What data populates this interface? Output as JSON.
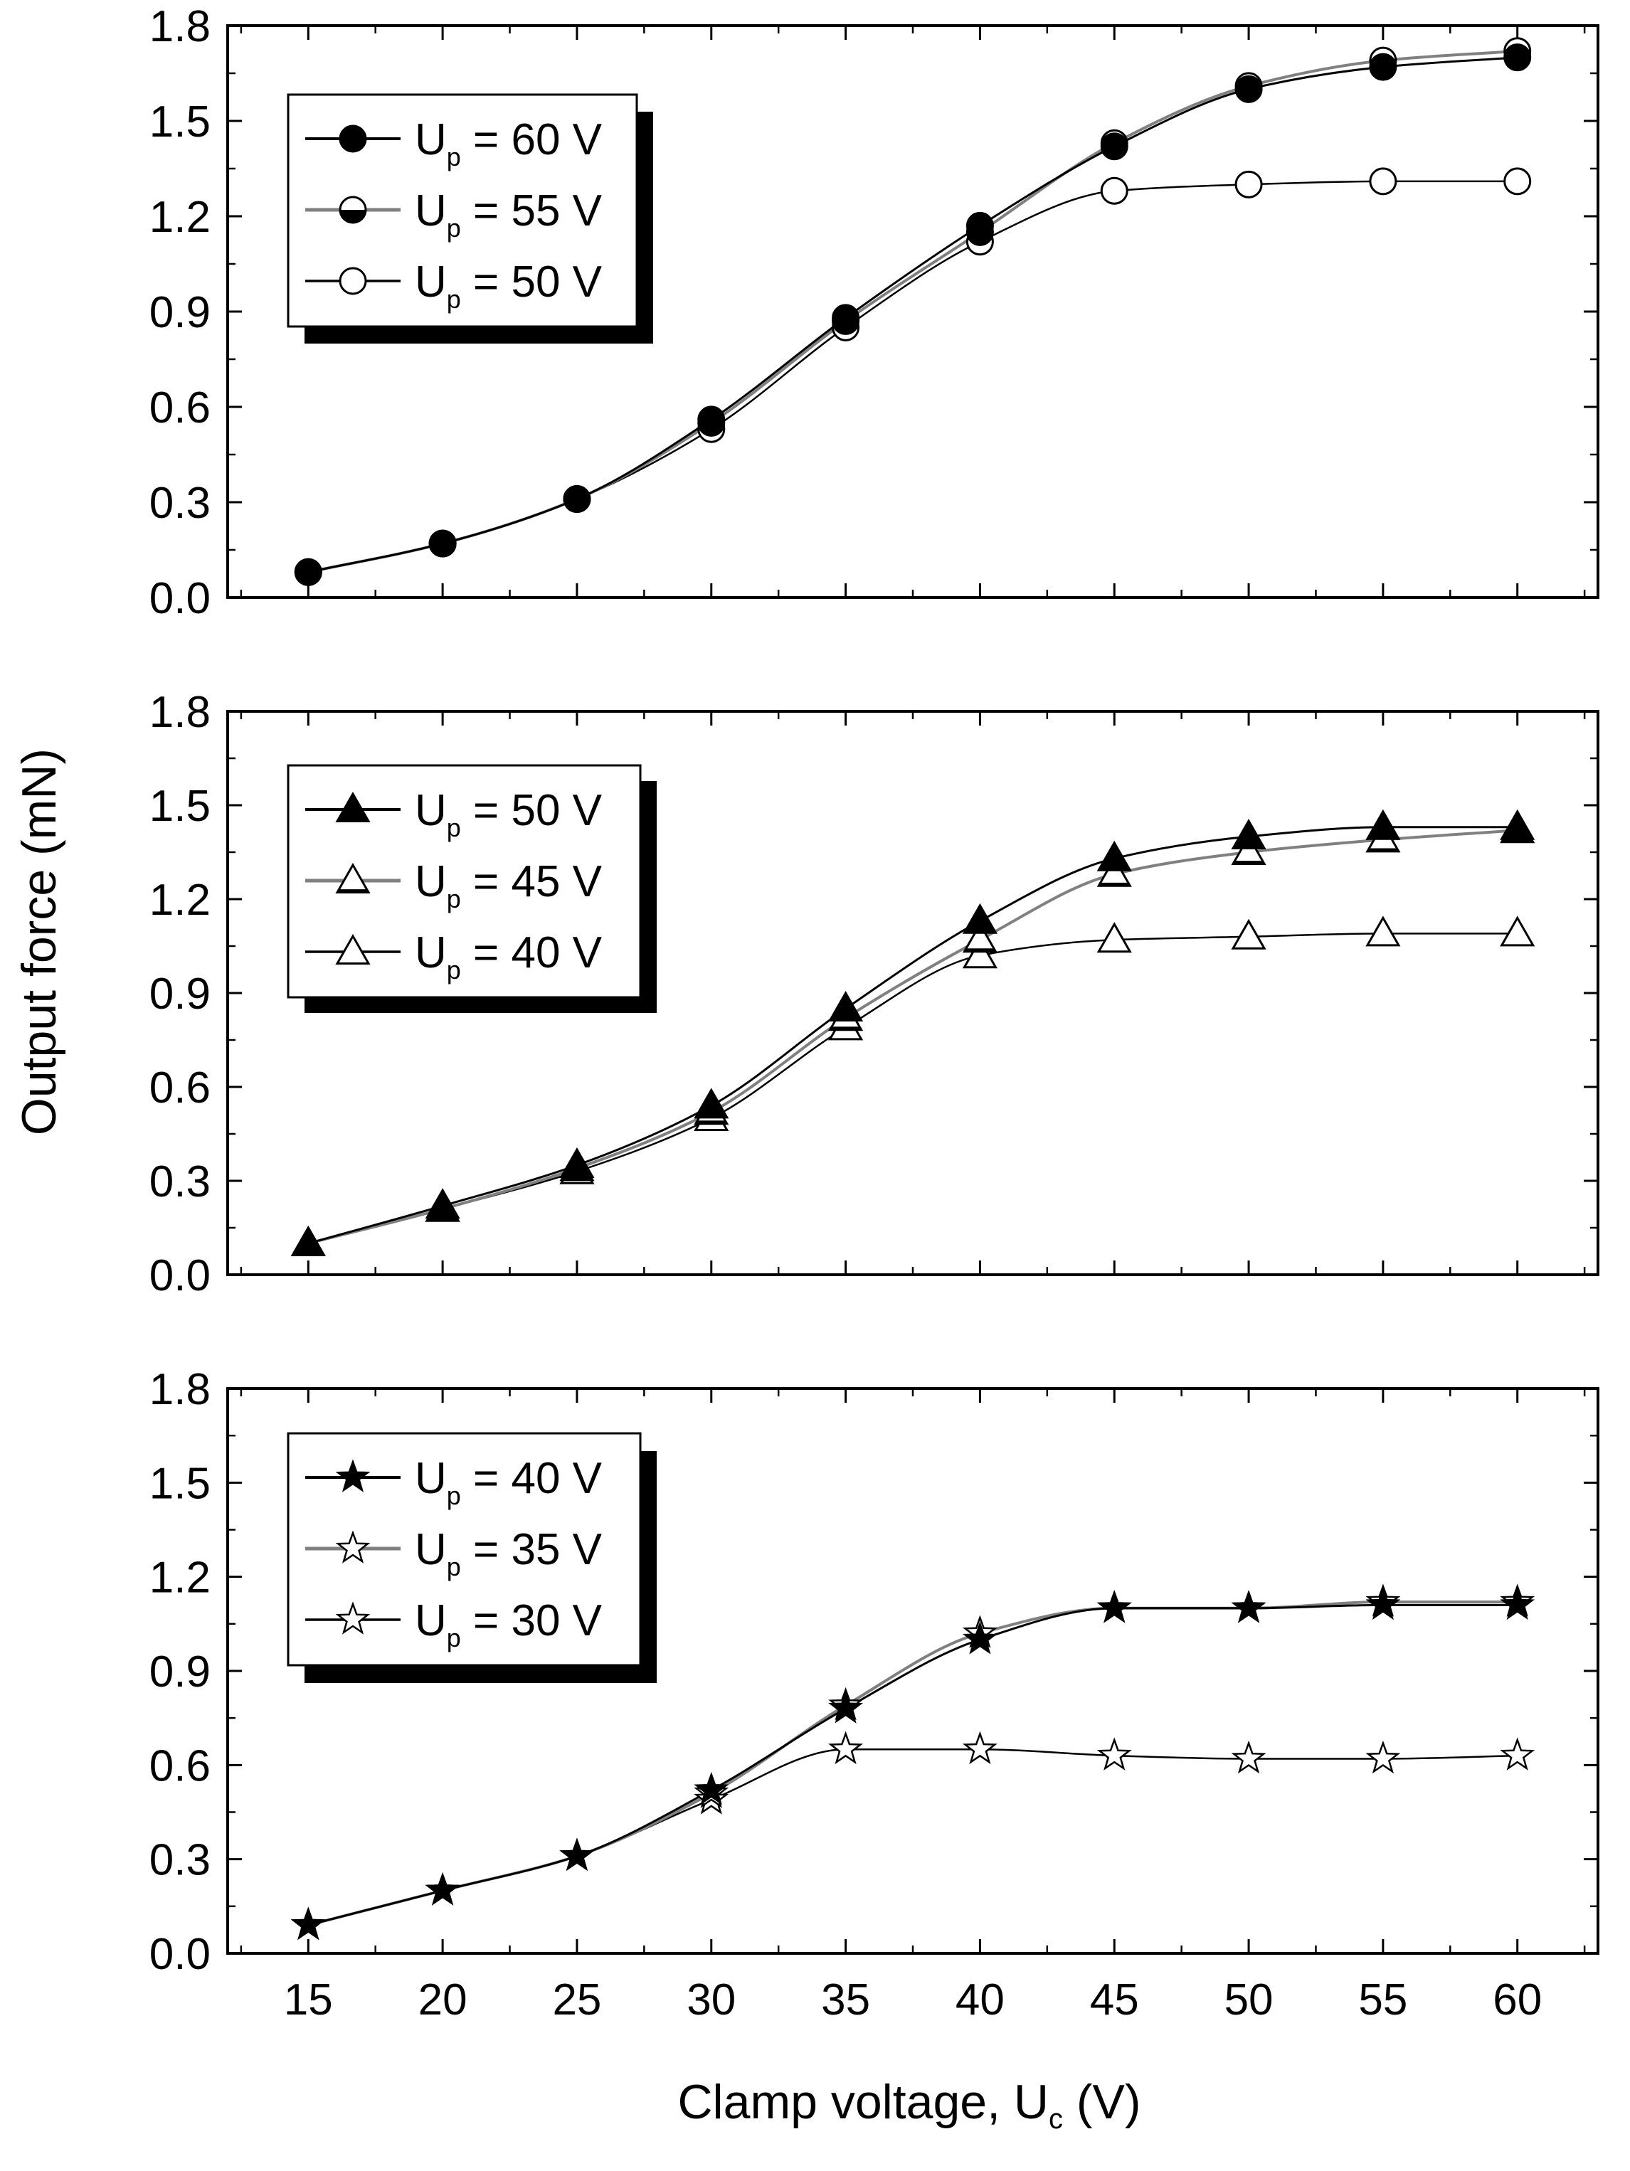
{
  "figure": {
    "ylabel": "Output force (mN)",
    "xlabel_prefix": "Clamp voltage, U",
    "xlabel_sub": "c",
    "xlabel_suffix": " (V)"
  },
  "colors": {
    "axis": "#000000",
    "dark_series": "#000000",
    "gray_series": "#808080",
    "light_series": "#000000",
    "half_fill": "#000000",
    "open_fill": "#ffffff",
    "legend_shadow": "#000000"
  },
  "chart_data": [
    {
      "type": "line",
      "xlim": [
        12,
        63
      ],
      "ylim": [
        0,
        1.8
      ],
      "xticks": [
        15,
        20,
        25,
        30,
        35,
        40,
        45,
        50,
        55,
        60
      ],
      "yticks": [
        "0.0",
        "0.3",
        "0.6",
        "0.9",
        "1.2",
        "1.5",
        "1.8"
      ],
      "show_xtick_labels": false,
      "legend_position": "upper-left",
      "marker": "circle",
      "series": [
        {
          "label_prefix": "U",
          "label_sub": "p",
          "label_suffix": " = 60 V",
          "style": "filled",
          "x": [
            15,
            20,
            25,
            30,
            35,
            40,
            45,
            50,
            55,
            60
          ],
          "y": [
            0.08,
            0.17,
            0.31,
            0.56,
            0.88,
            1.17,
            1.42,
            1.6,
            1.67,
            1.7
          ]
        },
        {
          "label_prefix": "U",
          "label_sub": "p",
          "label_suffix": " = 55 V",
          "style": "half",
          "x": [
            15,
            20,
            25,
            30,
            35,
            40,
            45,
            50,
            55,
            60
          ],
          "y": [
            0.08,
            0.17,
            0.31,
            0.55,
            0.87,
            1.15,
            1.43,
            1.61,
            1.69,
            1.72
          ]
        },
        {
          "label_prefix": "U",
          "label_sub": "p",
          "label_suffix": " = 50 V",
          "style": "open",
          "x": [
            15,
            20,
            25,
            30,
            35,
            40,
            45,
            50,
            55,
            60
          ],
          "y": [
            0.08,
            0.17,
            0.31,
            0.53,
            0.85,
            1.12,
            1.28,
            1.3,
            1.31,
            1.31
          ]
        }
      ]
    },
    {
      "type": "line",
      "xlim": [
        12,
        63
      ],
      "ylim": [
        0,
        1.8
      ],
      "xticks": [
        15,
        20,
        25,
        30,
        35,
        40,
        45,
        50,
        55,
        60
      ],
      "yticks": [
        "0.0",
        "0.3",
        "0.6",
        "0.9",
        "1.2",
        "1.5",
        "1.8"
      ],
      "show_xtick_labels": false,
      "legend_position": "upper-left",
      "marker": "triangle",
      "series": [
        {
          "label_prefix": "U",
          "label_sub": "p",
          "label_suffix": " = 50 V",
          "style": "filled",
          "x": [
            15,
            20,
            25,
            30,
            35,
            40,
            45,
            50,
            55,
            60
          ],
          "y": [
            0.1,
            0.22,
            0.35,
            0.54,
            0.85,
            1.13,
            1.33,
            1.4,
            1.43,
            1.43
          ]
        },
        {
          "label_prefix": "U",
          "label_sub": "p",
          "label_suffix": " = 45 V",
          "style": "half",
          "x": [
            15,
            20,
            25,
            30,
            35,
            40,
            45,
            50,
            55,
            60
          ],
          "y": [
            0.1,
            0.21,
            0.34,
            0.52,
            0.82,
            1.07,
            1.28,
            1.35,
            1.39,
            1.42
          ]
        },
        {
          "label_prefix": "U",
          "label_sub": "p",
          "label_suffix": " = 40 V",
          "style": "open",
          "x": [
            15,
            20,
            25,
            30,
            35,
            40,
            45,
            50,
            55,
            60
          ],
          "y": [
            0.1,
            0.21,
            0.33,
            0.5,
            0.79,
            1.02,
            1.07,
            1.08,
            1.09,
            1.09
          ]
        }
      ]
    },
    {
      "type": "line",
      "xlim": [
        12,
        63
      ],
      "ylim": [
        0,
        1.8
      ],
      "xticks": [
        15,
        20,
        25,
        30,
        35,
        40,
        45,
        50,
        55,
        60
      ],
      "xtick_labels": [
        "15",
        "20",
        "25",
        "30",
        "35",
        "40",
        "45",
        "50",
        "55",
        "60"
      ],
      "yticks": [
        "0.0",
        "0.3",
        "0.6",
        "0.9",
        "1.2",
        "1.5",
        "1.8"
      ],
      "show_xtick_labels": true,
      "legend_position": "upper-left",
      "marker": "star",
      "series": [
        {
          "label_prefix": "U",
          "label_sub": "p",
          "label_suffix": " = 40 V",
          "style": "filled",
          "x": [
            15,
            20,
            25,
            30,
            35,
            40,
            45,
            50,
            55,
            60
          ],
          "y": [
            0.09,
            0.2,
            0.31,
            0.52,
            0.78,
            1.0,
            1.1,
            1.1,
            1.11,
            1.11
          ]
        },
        {
          "label_prefix": "U",
          "label_sub": "p",
          "label_suffix": " = 35 V",
          "style": "half",
          "x": [
            15,
            20,
            25,
            30,
            35,
            40,
            45,
            50,
            55,
            60
          ],
          "y": [
            0.09,
            0.2,
            0.31,
            0.51,
            0.79,
            1.02,
            1.1,
            1.1,
            1.12,
            1.12
          ]
        },
        {
          "label_prefix": "U",
          "label_sub": "p",
          "label_suffix": " = 30 V",
          "style": "open",
          "x": [
            15,
            20,
            25,
            30,
            35,
            40,
            45,
            50,
            55,
            60
          ],
          "y": [
            0.09,
            0.2,
            0.31,
            0.49,
            0.65,
            0.65,
            0.63,
            0.62,
            0.62,
            0.63
          ]
        }
      ]
    }
  ]
}
